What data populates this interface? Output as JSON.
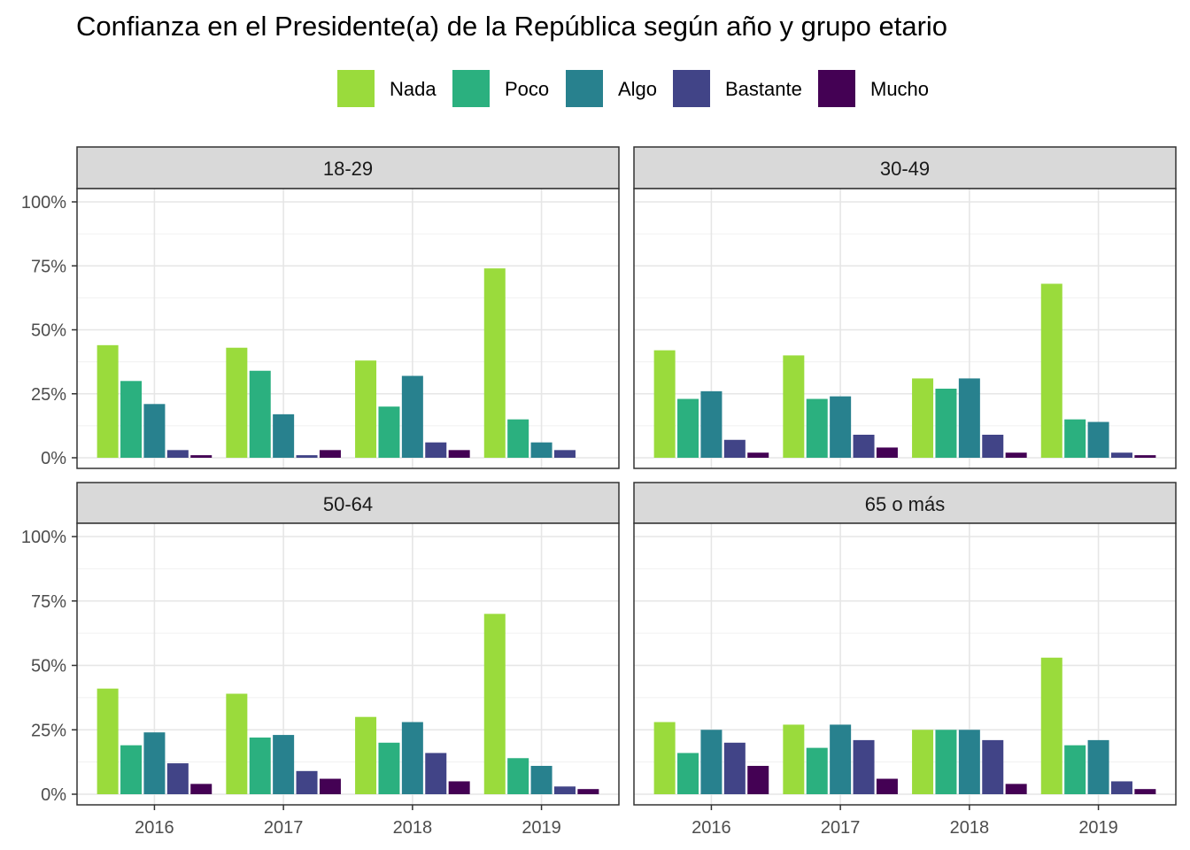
{
  "chart_data": {
    "type": "bar",
    "title": "Confianza en el Presidente(a) de la República según año y grupo etario",
    "categories": [
      "2016",
      "2017",
      "2018",
      "2019"
    ],
    "series_names": [
      "Nada",
      "Poco",
      "Algo",
      "Bastante",
      "Mucho"
    ],
    "colors": {
      "Nada": "#9ADB3C",
      "Poco": "#2BB07F",
      "Algo": "#28818E",
      "Bastante": "#414487",
      "Mucho": "#440154"
    },
    "y_ticks": [
      "0%",
      "25%",
      "50%",
      "75%",
      "100%"
    ],
    "ylim": [
      0,
      100
    ],
    "grid": true,
    "legend_position": "top",
    "facets": [
      {
        "label": "18-29",
        "series": [
          {
            "name": "Nada",
            "values": [
              44,
              43,
              38,
              74
            ]
          },
          {
            "name": "Poco",
            "values": [
              30,
              34,
              20,
              15
            ]
          },
          {
            "name": "Algo",
            "values": [
              21,
              17,
              32,
              6
            ]
          },
          {
            "name": "Bastante",
            "values": [
              3,
              1,
              6,
              3
            ]
          },
          {
            "name": "Mucho",
            "values": [
              1,
              3,
              3,
              0
            ]
          }
        ]
      },
      {
        "label": "30-49",
        "series": [
          {
            "name": "Nada",
            "values": [
              42,
              40,
              31,
              68
            ]
          },
          {
            "name": "Poco",
            "values": [
              23,
              23,
              27,
              15
            ]
          },
          {
            "name": "Algo",
            "values": [
              26,
              24,
              31,
              14
            ]
          },
          {
            "name": "Bastante",
            "values": [
              7,
              9,
              9,
              2
            ]
          },
          {
            "name": "Mucho",
            "values": [
              2,
              4,
              2,
              1
            ]
          }
        ]
      },
      {
        "label": "50-64",
        "series": [
          {
            "name": "Nada",
            "values": [
              41,
              39,
              30,
              70
            ]
          },
          {
            "name": "Poco",
            "values": [
              19,
              22,
              20,
              14
            ]
          },
          {
            "name": "Algo",
            "values": [
              24,
              23,
              28,
              11
            ]
          },
          {
            "name": "Bastante",
            "values": [
              12,
              9,
              16,
              3
            ]
          },
          {
            "name": "Mucho",
            "values": [
              4,
              6,
              5,
              2
            ]
          }
        ]
      },
      {
        "label": "65 o más",
        "series": [
          {
            "name": "Nada",
            "values": [
              28,
              27,
              25,
              53
            ]
          },
          {
            "name": "Poco",
            "values": [
              16,
              18,
              25,
              19
            ]
          },
          {
            "name": "Algo",
            "values": [
              25,
              27,
              25,
              21
            ]
          },
          {
            "name": "Bastante",
            "values": [
              20,
              21,
              21,
              5
            ]
          },
          {
            "name": "Mucho",
            "values": [
              11,
              6,
              4,
              2
            ]
          }
        ]
      }
    ]
  }
}
